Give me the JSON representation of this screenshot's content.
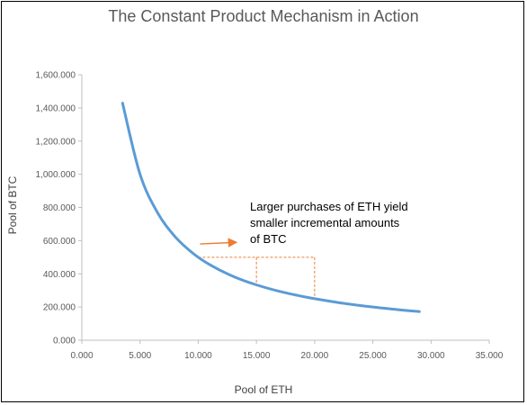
{
  "chart_data": {
    "type": "line",
    "title": "The Constant Product Mechanism in Action",
    "xlabel": "Pool of ETH",
    "ylabel": "Pool of BTC",
    "xlim": [
      0,
      35000
    ],
    "ylim": [
      0,
      1600000
    ],
    "x_ticks": [
      0,
      5000,
      10000,
      15000,
      20000,
      25000,
      30000,
      35000
    ],
    "x_tick_labels": [
      "0.000",
      "5.000",
      "10.000",
      "15.000",
      "20.000",
      "25.000",
      "30.000",
      "35.000"
    ],
    "y_ticks": [
      0,
      200000,
      400000,
      600000,
      800000,
      1000000,
      1200000,
      1400000,
      1600000
    ],
    "y_tick_labels": [
      "0.000",
      "200.000",
      "400.000",
      "600.000",
      "800.000",
      "1,000.000",
      "1,200.000",
      "1,400.000",
      "1,600.000"
    ],
    "grid": false,
    "series_color": "#5b9bd5",
    "x": [
      3500,
      5000,
      6500,
      8000,
      9500,
      11000,
      13000,
      15000,
      17000,
      19000,
      20000,
      22000,
      24000,
      26000,
      28000,
      29000
    ],
    "y": [
      1428571,
      1000000,
      769231,
      625000,
      526316,
      454545,
      384615,
      333333,
      294118,
      263158,
      250000,
      227273,
      208333,
      192308,
      178571,
      172414
    ],
    "annotation": {
      "text": "Larger purchases of ETH yield smaller incremental amounts of BTC",
      "arrow_color": "#ed7d31",
      "arrow_from": [
        10000,
        580000
      ],
      "arrow_to": [
        13300,
        590000
      ],
      "guide_color": "#ed7d31",
      "guide_x": [
        10000,
        15000,
        20000
      ],
      "guide_y_top": 500000,
      "guide_y_bottom": [
        500000,
        333333,
        250000
      ]
    }
  }
}
